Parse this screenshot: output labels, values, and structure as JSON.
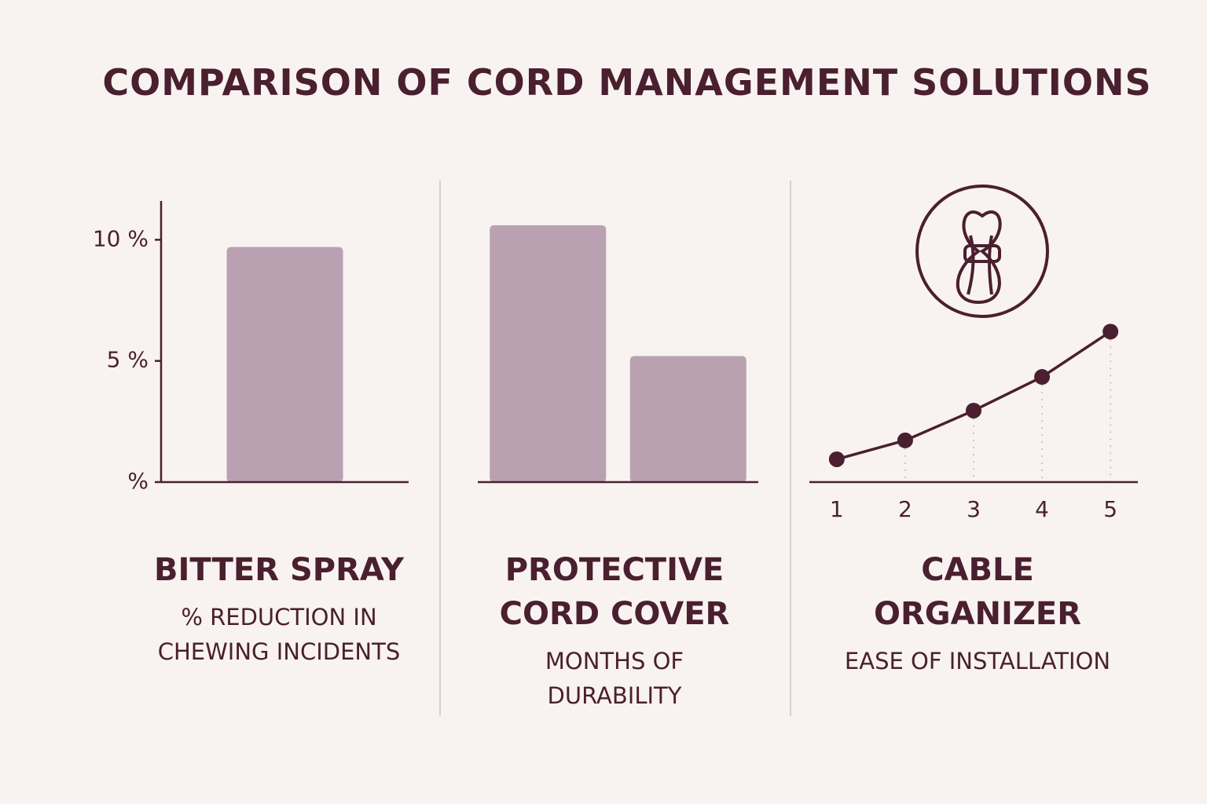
{
  "title": "COMPARISON OF CORD MANAGEMENT SOLUTIONS",
  "chart_data": [
    {
      "type": "bar",
      "title": "BITTER SPRAY",
      "subtitle": "% REDUCTION IN CHEWING INCIDENTS",
      "categories": [
        null
      ],
      "values": [
        9.7
      ],
      "color": "#b9a1b2",
      "ylim": [
        0,
        11.6
      ],
      "yticks": [
        {
          "value": 0,
          "label": "%"
        },
        {
          "value": 5,
          "label": "5 %"
        },
        {
          "value": 10,
          "label": "10 %"
        }
      ]
    },
    {
      "type": "bar",
      "title": "PROTECTIVE CORD COVER",
      "subtitle": "MONTHS OF DURABILITY",
      "categories": [
        null,
        null
      ],
      "values": [
        10.6,
        5.2
      ],
      "color": "#b9a1b2",
      "ylim": [
        0,
        11.6
      ]
    },
    {
      "type": "line",
      "title": "CABLE ORGANIZER",
      "subtitle": "EASE OF INSTALLATION",
      "x": [
        1,
        2,
        3,
        4,
        5
      ],
      "values": [
        0.94,
        1.72,
        2.95,
        4.34,
        6.21
      ],
      "color": "#4a1f30",
      "xlim": [
        0.6,
        5.4
      ],
      "xticks": [
        1,
        2,
        3,
        4,
        5
      ],
      "ylim": [
        0,
        11.6
      ]
    }
  ]
}
